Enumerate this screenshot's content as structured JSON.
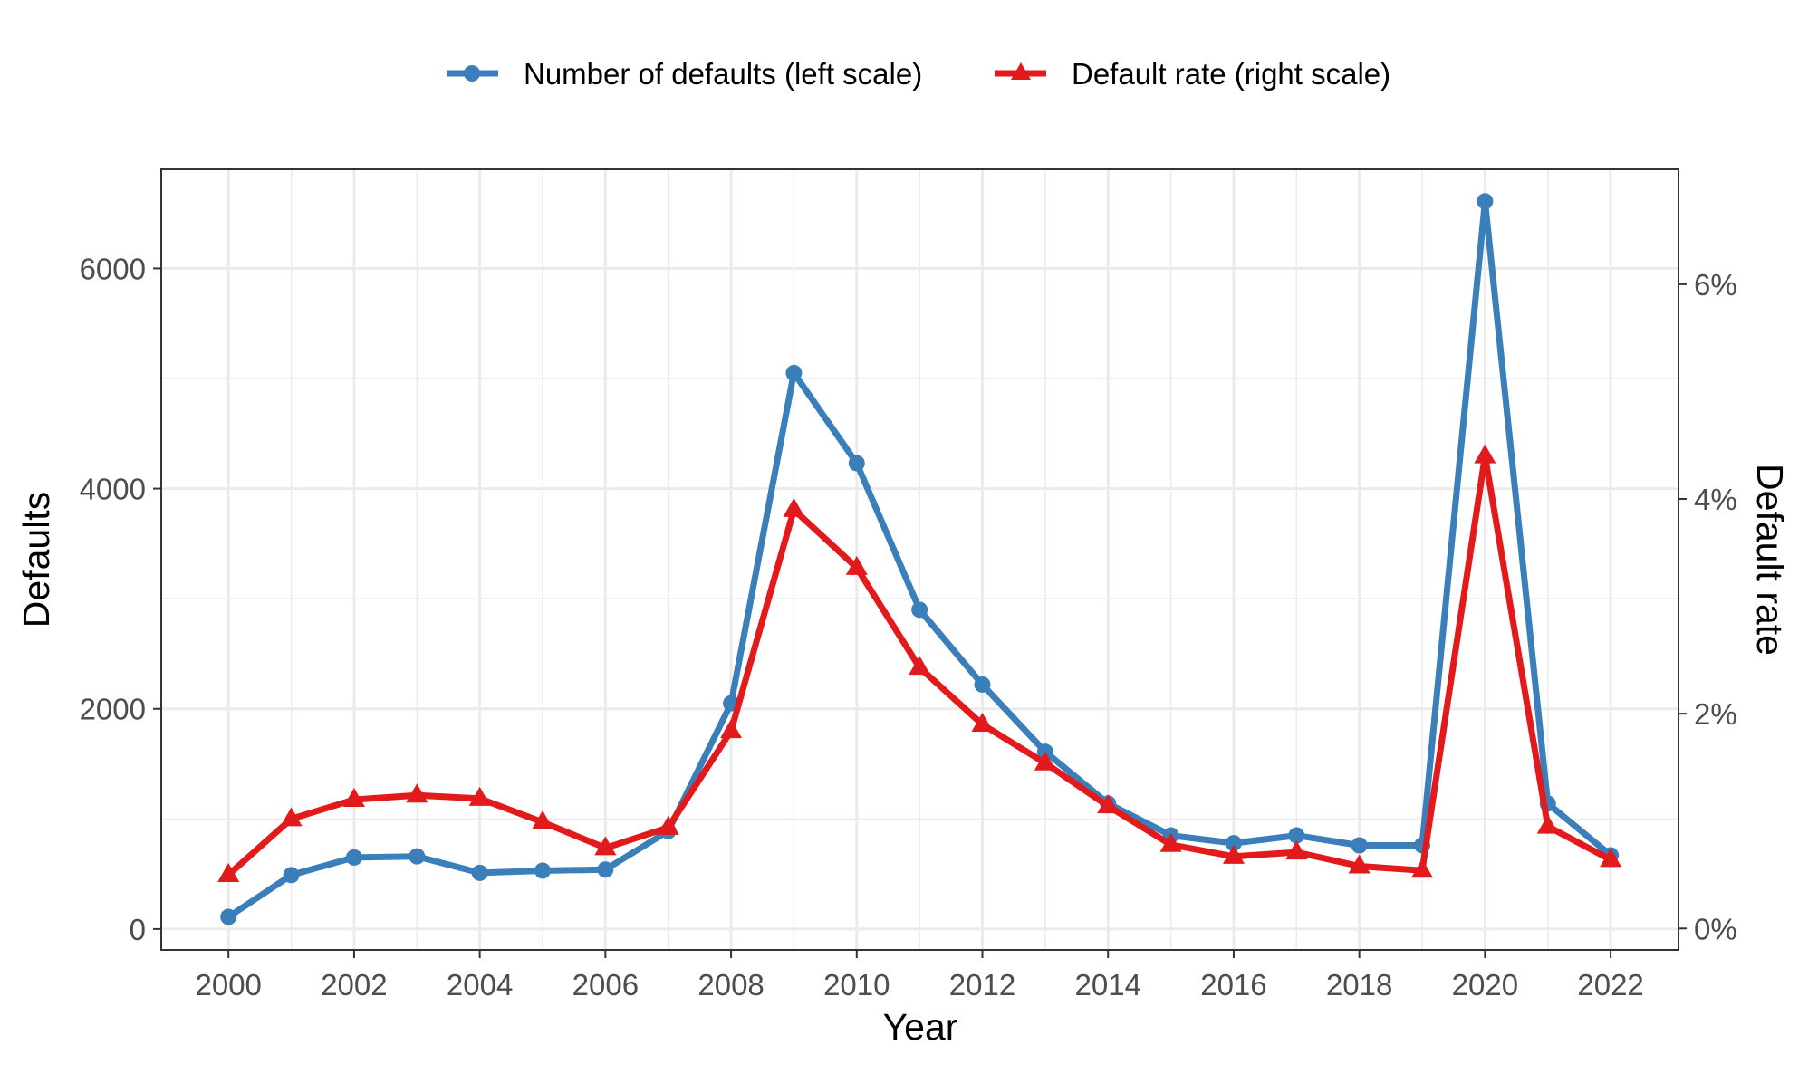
{
  "chart_data": {
    "type": "line",
    "x": [
      2000,
      2001,
      2002,
      2003,
      2004,
      2005,
      2006,
      2007,
      2008,
      2009,
      2010,
      2011,
      2012,
      2013,
      2014,
      2015,
      2016,
      2017,
      2018,
      2019,
      2020,
      2021,
      2022
    ],
    "series": [
      {
        "name": "Number of defaults (left scale)",
        "axis": "left",
        "marker": "circle",
        "color": "#3A7FBA",
        "values": [
          110,
          490,
          650,
          660,
          510,
          530,
          540,
          890,
          2050,
          5050,
          4230,
          2900,
          2220,
          1610,
          1140,
          850,
          780,
          850,
          760,
          760,
          6610,
          1140,
          670
        ]
      },
      {
        "name": "Default rate (right scale)",
        "axis": "right",
        "marker": "triangle",
        "color": "#E31A1C",
        "values": [
          0.5,
          1.02,
          1.2,
          1.24,
          1.21,
          0.99,
          0.75,
          0.94,
          1.84,
          3.9,
          3.36,
          2.43,
          1.9,
          1.54,
          1.14,
          0.78,
          0.67,
          0.71,
          0.58,
          0.54,
          4.4,
          0.95,
          0.64
        ]
      }
    ],
    "xlabel": "Year",
    "ylabel": "Defaults",
    "y2label": "Default rate",
    "xlim": [
      1998.93,
      2023.08
    ],
    "ylim": [
      -190,
      6900
    ],
    "y2lim": [
      -0.2,
      7.07
    ],
    "x_ticks": [
      "2000",
      "2002",
      "2004",
      "2006",
      "2008",
      "2010",
      "2012",
      "2014",
      "2016",
      "2018",
      "2020",
      "2022"
    ],
    "y_ticks": [
      "0",
      "2000",
      "4000",
      "6000"
    ],
    "y2_ticks": [
      "0%",
      "2%",
      "4%",
      "6%"
    ],
    "grid": true,
    "legend_position": "top"
  }
}
